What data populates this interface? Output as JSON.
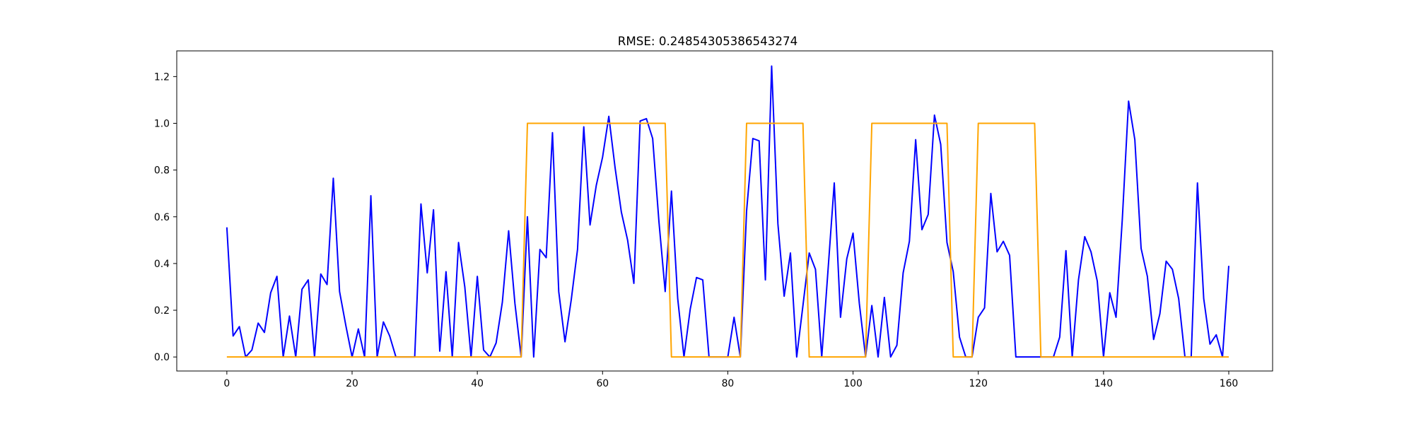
{
  "chart_data": {
    "type": "line",
    "title": "RMSE: 0.24854305386543274",
    "xlabel": "",
    "ylabel": "",
    "xlim": [
      -8,
      167
    ],
    "ylim": [
      -0.06,
      1.31
    ],
    "grid": false,
    "legend": "none",
    "x_ticks": [
      0,
      20,
      40,
      60,
      80,
      100,
      120,
      140,
      160
    ],
    "x_tick_labels": [
      "0",
      "20",
      "40",
      "60",
      "80",
      "100",
      "120",
      "140",
      "160"
    ],
    "y_ticks": [
      0.0,
      0.2,
      0.4,
      0.6,
      0.8,
      1.0,
      1.2
    ],
    "y_tick_labels": [
      "0.0",
      "0.2",
      "0.4",
      "0.6",
      "0.8",
      "1.0",
      "1.2"
    ],
    "series": [
      {
        "color": "#0000ff",
        "values": [
          0.555,
          0.09,
          0.13,
          0.0,
          0.03,
          0.145,
          0.105,
          0.275,
          0.345,
          0.0,
          0.175,
          0.0,
          0.29,
          0.33,
          0.0,
          0.355,
          0.31,
          0.765,
          0.28,
          0.135,
          0.0,
          0.12,
          0.0,
          0.69,
          0.0,
          0.15,
          0.09,
          0.0,
          0.0,
          0.0,
          0.0,
          0.655,
          0.36,
          0.63,
          0.025,
          0.365,
          0.0,
          0.49,
          0.3,
          0.0,
          0.345,
          0.03,
          0.0,
          0.06,
          0.235,
          0.54,
          0.23,
          0.0,
          0.6,
          0.0,
          0.46,
          0.425,
          0.96,
          0.28,
          0.065,
          0.245,
          0.46,
          0.985,
          0.565,
          0.735,
          0.855,
          1.03,
          0.81,
          0.62,
          0.5,
          0.315,
          1.01,
          1.02,
          0.935,
          0.58,
          0.28,
          0.71,
          0.25,
          0.0,
          0.205,
          0.34,
          0.33,
          0.0,
          0.0,
          0.0,
          0.0,
          0.17,
          0.0,
          0.625,
          0.935,
          0.925,
          0.33,
          1.245,
          0.57,
          0.26,
          0.445,
          0.0,
          0.22,
          0.445,
          0.375,
          0.0,
          0.37,
          0.745,
          0.17,
          0.42,
          0.53,
          0.23,
          0.0,
          0.22,
          0.0,
          0.255,
          0.0,
          0.05,
          0.36,
          0.495,
          0.93,
          0.545,
          0.61,
          1.035,
          0.91,
          0.49,
          0.365,
          0.085,
          0.0,
          0.0,
          0.17,
          0.21,
          0.7,
          0.45,
          0.495,
          0.435,
          0.0,
          0.0,
          0.0,
          0.0,
          0.0,
          0.0,
          0.0,
          0.085,
          0.455,
          0.0,
          0.33,
          0.515,
          0.45,
          0.325,
          0.0,
          0.275,
          0.17,
          0.59,
          1.095,
          0.93,
          0.465,
          0.345,
          0.075,
          0.185,
          0.41,
          0.375,
          0.25,
          0.0,
          0.0,
          0.745,
          0.25,
          0.055,
          0.095,
          0.0,
          0.39
        ]
      },
      {
        "color": "#ffa500",
        "values": [
          0,
          0,
          0,
          0,
          0,
          0,
          0,
          0,
          0,
          0,
          0,
          0,
          0,
          0,
          0,
          0,
          0,
          0,
          0,
          0,
          0,
          0,
          0,
          0,
          0,
          0,
          0,
          0,
          0,
          0,
          0,
          0,
          0,
          0,
          0,
          0,
          0,
          0,
          0,
          0,
          0,
          0,
          0,
          0,
          0,
          0,
          0,
          0,
          1,
          1,
          1,
          1,
          1,
          1,
          1,
          1,
          1,
          1,
          1,
          1,
          1,
          1,
          1,
          1,
          1,
          1,
          1,
          1,
          1,
          1,
          1,
          0,
          0,
          0,
          0,
          0,
          0,
          0,
          0,
          0,
          0,
          0,
          0,
          1,
          1,
          1,
          1,
          1,
          1,
          1,
          1,
          1,
          1,
          0,
          0,
          0,
          0,
          0,
          0,
          0,
          0,
          0,
          0,
          1,
          1,
          1,
          1,
          1,
          1,
          1,
          1,
          1,
          1,
          1,
          1,
          1,
          0,
          0,
          0,
          0,
          1,
          1,
          1,
          1,
          1,
          1,
          1,
          1,
          1,
          1,
          0,
          0,
          0,
          0,
          0,
          0,
          0,
          0,
          0,
          0,
          0,
          0,
          0,
          0,
          0,
          0,
          0,
          0,
          0,
          0,
          0,
          0,
          0,
          0,
          0,
          0,
          0,
          0,
          0,
          0,
          0
        ]
      }
    ]
  }
}
